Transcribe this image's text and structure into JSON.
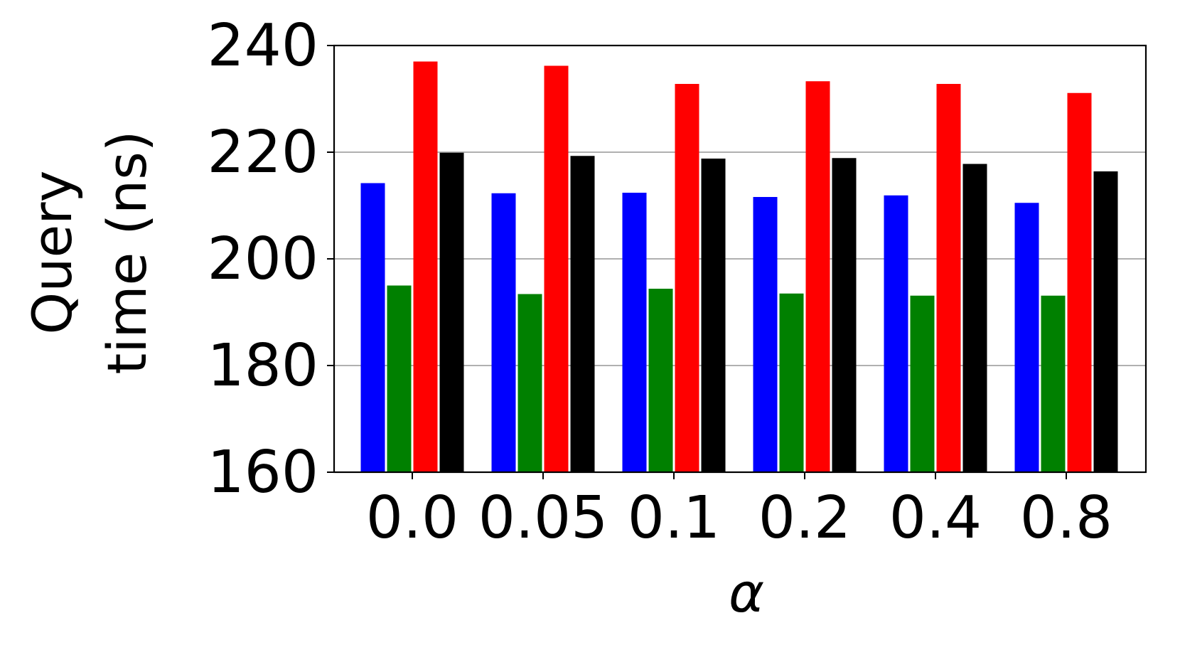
{
  "chart_data": {
    "type": "bar",
    "title": "",
    "xlabel": "α",
    "ylabel_lines": [
      "Query",
      "time (ns)"
    ],
    "categories": [
      "0.0",
      "0.05",
      "0.1",
      "0.2",
      "0.4",
      "0.8"
    ],
    "ylim": [
      160,
      240
    ],
    "yticks": [
      160,
      180,
      200,
      220,
      240
    ],
    "grid": "y",
    "legend": "none",
    "series": [
      {
        "color": "#0000ff",
        "values": [
          214.2,
          212.3,
          212.4,
          211.6,
          211.9,
          210.5
        ]
      },
      {
        "color": "#008000",
        "values": [
          195.0,
          193.4,
          194.4,
          193.5,
          193.1,
          193.1
        ]
      },
      {
        "color": "#ff0000",
        "values": [
          237.0,
          236.2,
          232.8,
          233.3,
          232.8,
          231.1
        ]
      },
      {
        "color": "#000000",
        "values": [
          219.9,
          219.3,
          218.8,
          218.9,
          217.8,
          216.4
        ]
      }
    ]
  }
}
